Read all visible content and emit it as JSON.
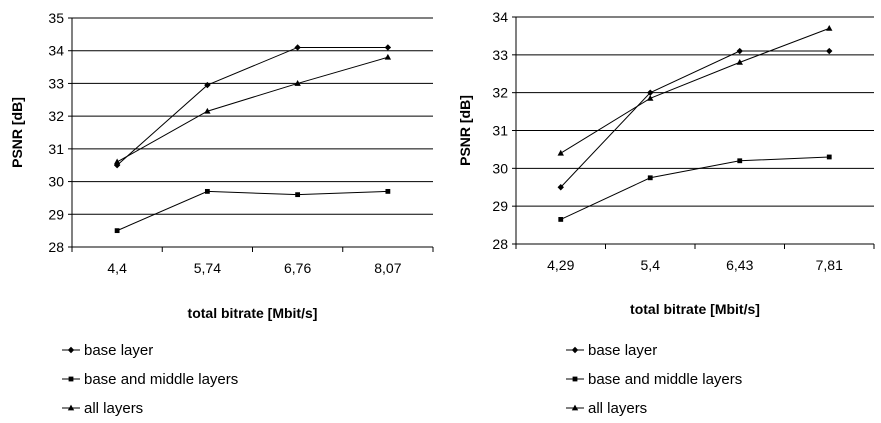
{
  "chart_data": [
    {
      "type": "line",
      "title": "",
      "xlabel": "total bitrate [Mbit/s]",
      "ylabel": "PSNR [dB]",
      "categories": [
        "4,4",
        "5,74",
        "6,76",
        "8,07"
      ],
      "ylim": [
        28,
        35
      ],
      "yticks": [
        "28",
        "29",
        "30",
        "31",
        "32",
        "33",
        "34",
        "35"
      ],
      "grid": "horizontal",
      "legend": "bottom",
      "series": [
        {
          "name": "base layer",
          "marker": "diamond",
          "values": [
            30.5,
            32.95,
            34.1,
            34.1
          ]
        },
        {
          "name": "base and middle layers",
          "marker": "square",
          "values": [
            28.5,
            29.7,
            29.6,
            29.7
          ]
        },
        {
          "name": "all layers",
          "marker": "triangle",
          "values": [
            30.6,
            32.15,
            33.0,
            33.8
          ]
        }
      ]
    },
    {
      "type": "line",
      "title": "",
      "xlabel": "total bitrate [Mbit/s]",
      "ylabel": "PSNR [dB]",
      "categories": [
        "4,29",
        "5,4",
        "6,43",
        "7,81"
      ],
      "ylim": [
        28,
        34
      ],
      "yticks": [
        "28",
        "29",
        "30",
        "31",
        "32",
        "33",
        "34"
      ],
      "grid": "horizontal",
      "legend": "bottom",
      "series": [
        {
          "name": "base layer",
          "marker": "diamond",
          "values": [
            29.5,
            32.0,
            33.1,
            33.1
          ]
        },
        {
          "name": "base and middle layers",
          "marker": "square",
          "values": [
            28.65,
            29.75,
            30.2,
            30.3
          ]
        },
        {
          "name": "all layers",
          "marker": "triangle",
          "values": [
            30.4,
            31.85,
            32.8,
            33.7
          ]
        }
      ]
    }
  ]
}
